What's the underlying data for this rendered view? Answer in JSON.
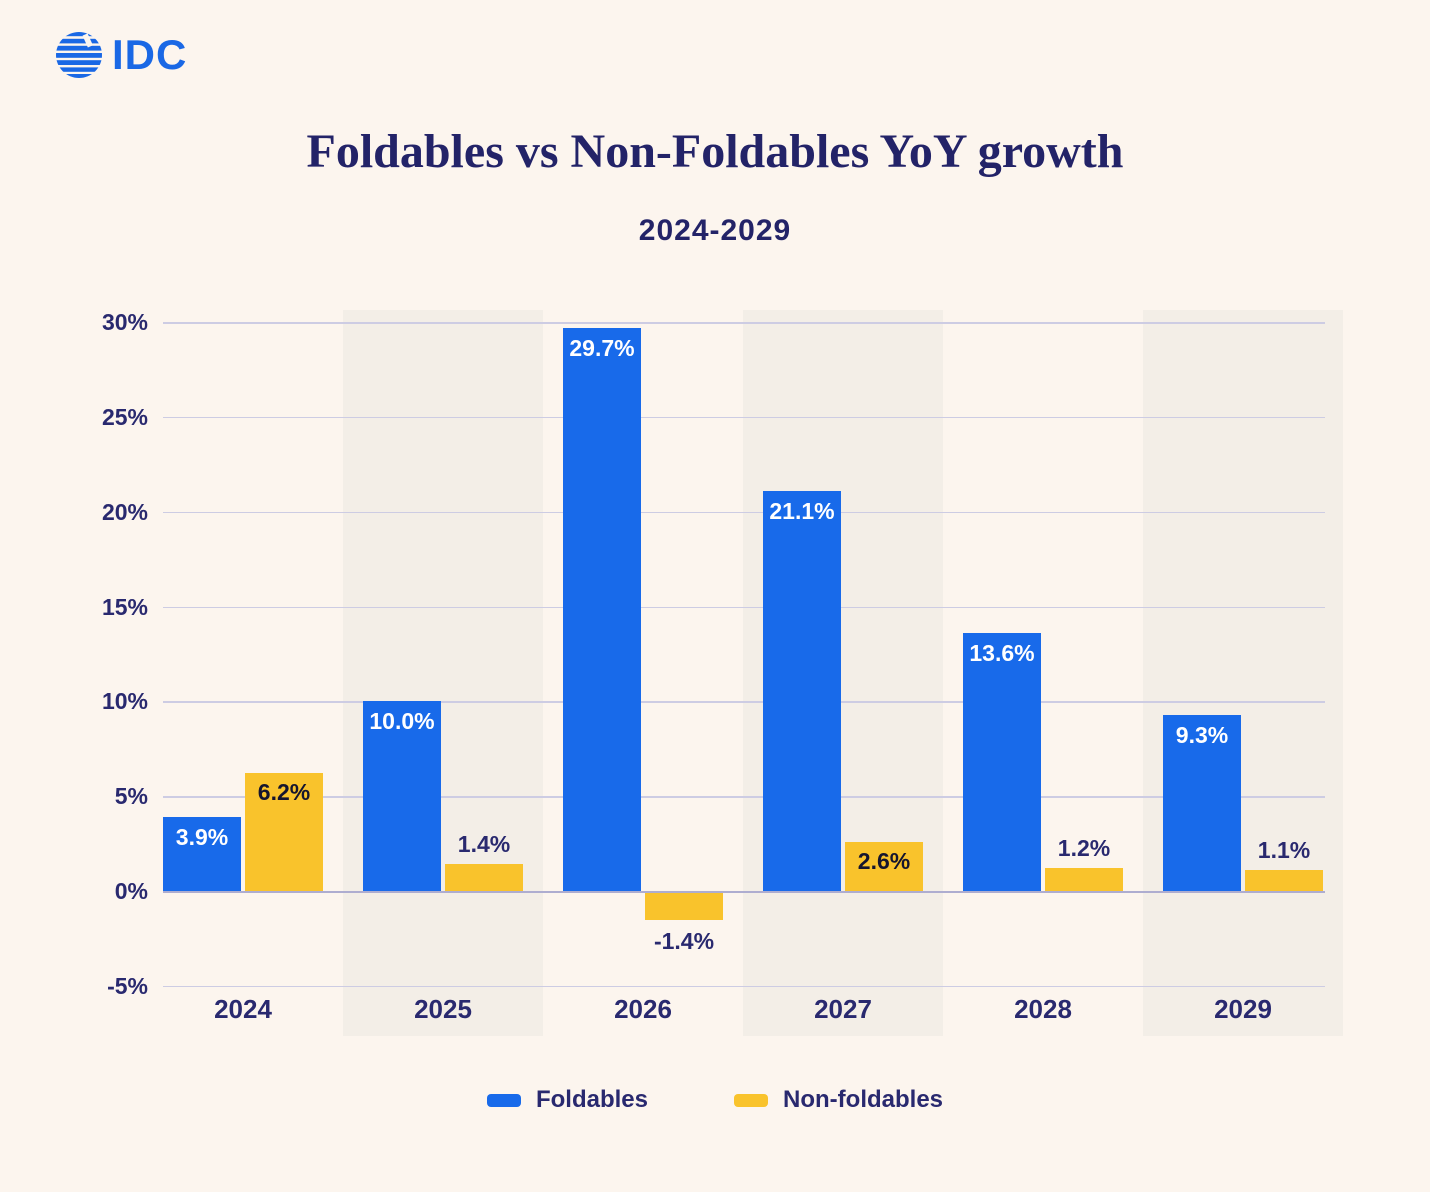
{
  "logo": {
    "text": "IDC"
  },
  "colors": {
    "background": "#FCF5EE",
    "column_band": "#F3EEE7",
    "gridline": "#CDCCE3",
    "zero_line": "#AEADD0",
    "foldables_blue": "#186AEA",
    "non_foldables_yellow": "#F9C32C",
    "navy_text": "#29296F",
    "title_navy": "#232368",
    "logo_blue": "#1A68E5",
    "bar_label_white": "#FFFFFF",
    "bar_label_dark": "#15152E"
  },
  "chart_data": {
    "type": "bar",
    "title": "Foldables vs Non-Foldables YoY growth",
    "subtitle": "2024-2029",
    "categories": [
      "2024",
      "2025",
      "2026",
      "2027",
      "2028",
      "2029"
    ],
    "series": [
      {
        "name": "Foldables",
        "color": "#186AEA",
        "values": [
          3.9,
          10.0,
          29.7,
          21.1,
          13.6,
          9.3
        ],
        "labels": [
          "3.9%",
          "10.0%",
          "29.7%",
          "21.1%",
          "13.6%",
          "9.3%"
        ]
      },
      {
        "name": "Non-foldables",
        "color": "#F9C32C",
        "values": [
          6.2,
          1.4,
          -1.4,
          2.6,
          1.2,
          1.1
        ],
        "labels": [
          "6.2%",
          "1.4%",
          "-1.4%",
          "2.6%",
          "1.2%",
          "1.1%"
        ]
      }
    ],
    "y_axis": {
      "min": -5,
      "max": 30,
      "ticks": [
        30,
        25,
        20,
        15,
        10,
        5,
        0,
        -5
      ],
      "tick_labels": [
        "30%",
        "25%",
        "20%",
        "15%",
        "10%",
        "5%",
        "0%",
        "-5%"
      ]
    },
    "grid": true,
    "legend_position": "bottom",
    "banded_columns": [
      "2025",
      "2027",
      "2029"
    ],
    "legend": [
      {
        "label": "Foldables",
        "color": "#186AEA"
      },
      {
        "label": "Non-foldables",
        "color": "#F9C32C"
      }
    ]
  }
}
